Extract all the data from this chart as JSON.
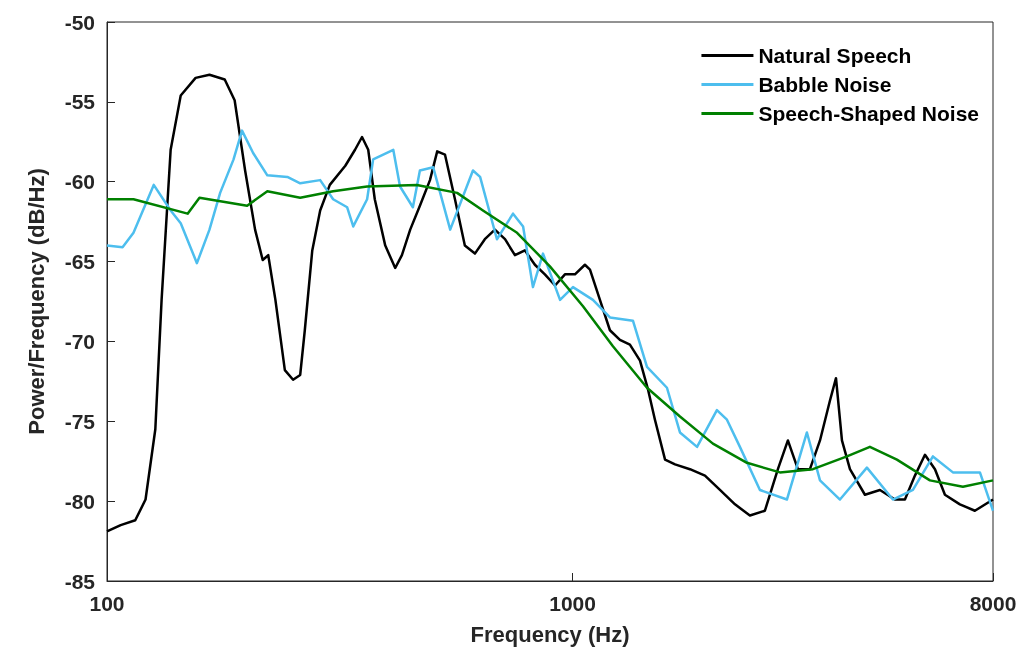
{
  "chart_data": {
    "type": "line",
    "xlabel": "Frequency (Hz)",
    "ylabel": "Power/Frequency (dB/Hz)",
    "log": "x",
    "xlim": [
      100,
      8000
    ],
    "xticks": [
      100,
      1000,
      8000
    ],
    "ylim": [
      -85,
      -50
    ],
    "yticks": [
      -85,
      -80,
      -75,
      -70,
      -65,
      -60,
      -55,
      -50
    ],
    "legend": "top right",
    "series": [
      {
        "name": "Natural Speech",
        "color": "#000000",
        "x": [
          100,
          107,
          115,
          121,
          127,
          131,
          137,
          144,
          155,
          166,
          179,
          188,
          198,
          208,
          216,
          222,
          230,
          241,
          251,
          260,
          266,
          276,
          287,
          301,
          325,
          341,
          353,
          364,
          376,
          396,
          416,
          430,
          448,
          470,
          494,
          512,
          532,
          559,
          587,
          617,
          648,
          681,
          716,
          752,
          790,
          830,
          872,
          917,
          963,
          1012,
          1063,
          1090,
          1145,
          1203,
          1264,
          1328,
          1396,
          1452,
          1503,
          1580,
          1660,
          1787,
          1925,
          2073,
          2233,
          2404,
          2589,
          2761,
          2901,
          3048,
          3235,
          3400,
          3572,
          3680,
          3790,
          3943,
          4246,
          4573,
          4925,
          5175,
          5438,
          5714,
          6004,
          6307,
          6792,
          7314,
          8000
        ],
        "values": [
          -81.9,
          -81.5,
          -81.2,
          -79.9,
          -75.5,
          -67.4,
          -58.0,
          -54.6,
          -53.5,
          -53.3,
          -53.6,
          -54.9,
          -59.3,
          -63.0,
          -64.9,
          -64.6,
          -67.4,
          -71.8,
          -72.4,
          -72.1,
          -69.3,
          -64.3,
          -61.8,
          -60.2,
          -59.0,
          -58.0,
          -57.2,
          -58.0,
          -61.1,
          -64.0,
          -65.4,
          -64.6,
          -63.0,
          -61.5,
          -59.9,
          -58.1,
          -58.3,
          -61.1,
          -64.0,
          -64.5,
          -63.6,
          -63.0,
          -63.6,
          -64.6,
          -64.3,
          -65.2,
          -65.8,
          -66.5,
          -65.8,
          -65.8,
          -65.2,
          -65.5,
          -67.4,
          -69.3,
          -69.9,
          -70.2,
          -71.2,
          -73.0,
          -74.9,
          -77.4,
          -77.7,
          -78.0,
          -78.4,
          -79.3,
          -80.2,
          -80.9,
          -80.6,
          -78.0,
          -76.2,
          -78.0,
          -78.0,
          -76.2,
          -73.7,
          -72.3,
          -76.2,
          -78.0,
          -79.6,
          -79.3,
          -79.9,
          -79.9,
          -78.4,
          -77.1,
          -78.0,
          -79.6,
          -80.2,
          -80.6,
          -79.9
        ]
      },
      {
        "name": "Babble Noise",
        "color": "#4dbeee",
        "x": [
          100,
          108,
          114,
          126,
          137,
          144,
          156,
          166,
          175,
          187,
          195,
          206,
          221,
          244,
          260,
          287,
          306,
          328,
          338,
          362,
          373,
          412,
          426,
          454,
          470,
          502,
          546,
          611,
          633,
          688,
          745,
          783,
          822,
          864,
          940,
          1002,
          1106,
          1203,
          1348,
          1445,
          1595,
          1701,
          1851,
          2042,
          2146,
          2288,
          2526,
          2887,
          3187,
          3400,
          3753,
          4288,
          4876,
          5384,
          5943,
          6561,
          7499,
          8000
        ],
        "values": [
          -64.0,
          -64.1,
          -63.2,
          -60.2,
          -61.8,
          -62.6,
          -65.1,
          -63.0,
          -60.7,
          -58.6,
          -56.8,
          -58.2,
          -59.6,
          -59.7,
          -60.1,
          -59.9,
          -61.1,
          -61.6,
          -62.8,
          -61.1,
          -58.6,
          -58.0,
          -60.3,
          -61.6,
          -59.3,
          -59.1,
          -63.0,
          -59.3,
          -59.7,
          -63.6,
          -62.0,
          -62.8,
          -66.6,
          -64.5,
          -67.4,
          -66.6,
          -67.4,
          -68.5,
          -68.7,
          -71.6,
          -72.9,
          -75.7,
          -76.6,
          -74.3,
          -74.9,
          -76.6,
          -79.3,
          -79.9,
          -75.7,
          -78.7,
          -79.9,
          -77.9,
          -79.9,
          -79.3,
          -77.2,
          -78.2,
          -78.2,
          -80.6
        ]
      },
      {
        "name": "Speech-Shaped Noise",
        "color": "#008000",
        "x": [
          100,
          114,
          149,
          158,
          200,
          221,
          260,
          306,
          362,
          463,
          565,
          642,
          760,
          894,
          1053,
          1221,
          1445,
          1701,
          2002,
          2369,
          2789,
          3283,
          3884,
          4352,
          4974,
          5856,
          6894,
          8000
        ],
        "values": [
          -61.1,
          -61.1,
          -62.0,
          -61.0,
          -61.5,
          -60.6,
          -61.0,
          -60.6,
          -60.3,
          -60.2,
          -60.7,
          -61.8,
          -63.2,
          -65.3,
          -67.8,
          -70.3,
          -72.9,
          -74.7,
          -76.4,
          -77.6,
          -78.2,
          -78.0,
          -77.2,
          -76.6,
          -77.4,
          -78.7,
          -79.1,
          -78.7
        ]
      }
    ]
  }
}
